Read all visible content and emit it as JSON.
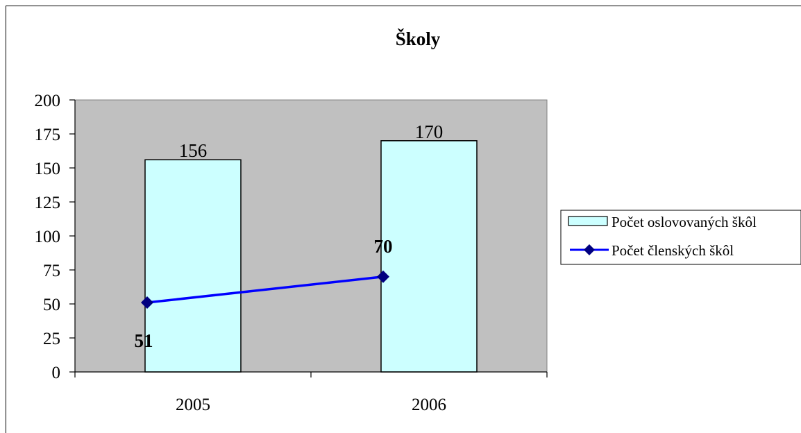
{
  "chart_data": {
    "type": "bar",
    "title": "Školy",
    "categories": [
      "2005",
      "2006"
    ],
    "ylim": [
      0,
      200
    ],
    "yticks": [
      0,
      25,
      50,
      75,
      100,
      125,
      150,
      175,
      200
    ],
    "series": [
      {
        "name": "Počet oslovovaných škôl",
        "kind": "bar",
        "values": [
          156,
          170
        ],
        "color": "#ccffff",
        "labels": [
          "156",
          "170"
        ]
      },
      {
        "name": "Počet členských škôl",
        "kind": "line",
        "values": [
          51,
          70
        ],
        "color": "#0000ff",
        "marker_color": "#000080",
        "labels": [
          "51",
          "70"
        ]
      }
    ],
    "plot_background": "#c0c0c0",
    "grid": false,
    "legend_position": "right"
  }
}
